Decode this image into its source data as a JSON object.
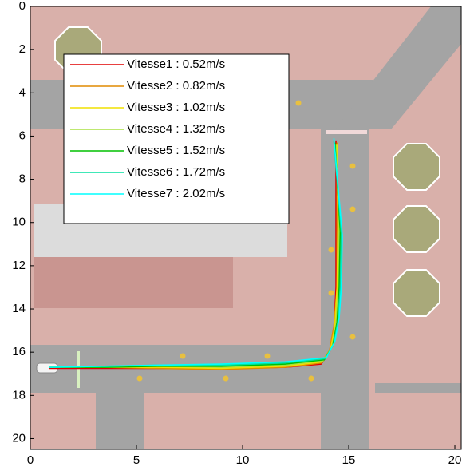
{
  "chart_data": {
    "type": "line",
    "xlim": [
      0,
      20.3
    ],
    "ylim": [
      0,
      20.5
    ],
    "y_inverted": true,
    "xticks": [
      0,
      5,
      10,
      15,
      20
    ],
    "yticks": [
      0,
      2,
      4,
      6,
      8,
      10,
      12,
      14,
      16,
      18,
      20
    ],
    "legend": "upper left",
    "series": [
      {
        "name": "Vitesse1 : 0.52m/s",
        "color": "#e00000",
        "x": [
          0.9,
          3.5,
          6,
          9,
          12,
          13.7,
          14.1,
          14.3,
          14.4,
          14.4,
          14.4
        ],
        "values": [
          16.75,
          16.75,
          16.75,
          16.75,
          16.7,
          16.55,
          16.0,
          15.0,
          13.0,
          10.0,
          6.2
        ]
      },
      {
        "name": "Vitesse2 : 0.82m/s",
        "color": "#e08a00",
        "x": [
          0.9,
          3.5,
          6,
          9,
          12,
          13.7,
          14.1,
          14.3,
          14.45,
          14.45,
          14.45
        ],
        "values": [
          16.7,
          16.7,
          16.75,
          16.8,
          16.7,
          16.5,
          15.9,
          14.8,
          13.0,
          10.0,
          6.3
        ]
      },
      {
        "name": "Vitesse3 : 1.02m/s",
        "color": "#f0e000",
        "x": [
          0.9,
          3.5,
          6,
          9,
          12,
          13.75,
          14.15,
          14.35,
          14.45,
          14.5,
          14.45
        ],
        "values": [
          16.7,
          16.7,
          16.7,
          16.75,
          16.65,
          16.45,
          15.85,
          14.8,
          13.0,
          10.2,
          6.4
        ]
      },
      {
        "name": "Vitesse4 : 1.32m/s",
        "color": "#a8e040",
        "x": [
          0.9,
          3.5,
          6,
          9,
          12,
          13.8,
          14.2,
          14.4,
          14.5,
          14.55,
          14.4
        ],
        "values": [
          16.7,
          16.7,
          16.65,
          16.7,
          16.6,
          16.4,
          15.8,
          14.7,
          13.0,
          10.3,
          6.4
        ]
      },
      {
        "name": "Vitesse5 : 1.52m/s",
        "color": "#00c000",
        "x": [
          0.9,
          3.5,
          6,
          9,
          12,
          13.85,
          14.25,
          14.45,
          14.55,
          14.6,
          14.35
        ],
        "values": [
          16.7,
          16.7,
          16.65,
          16.65,
          16.55,
          16.35,
          15.7,
          14.6,
          13.0,
          10.4,
          6.3
        ]
      },
      {
        "name": "Vitesse6 : 1.72m/s",
        "color": "#00e0a0",
        "x": [
          0.9,
          3.5,
          6,
          9,
          12,
          13.9,
          14.3,
          14.5,
          14.6,
          14.65,
          14.3
        ],
        "values": [
          16.7,
          16.65,
          16.6,
          16.6,
          16.5,
          16.3,
          15.6,
          14.5,
          13.0,
          10.5,
          6.2
        ]
      },
      {
        "name": "Vitesse7 : 2.02m/s",
        "color": "#00ffff",
        "x": [
          0.9,
          3.5,
          6,
          9,
          12,
          13.95,
          14.35,
          14.55,
          14.65,
          14.7,
          14.3
        ],
        "values": [
          16.7,
          16.65,
          16.6,
          16.55,
          16.45,
          16.25,
          15.5,
          14.4,
          13.0,
          10.6,
          6.1
        ]
      }
    ]
  }
}
